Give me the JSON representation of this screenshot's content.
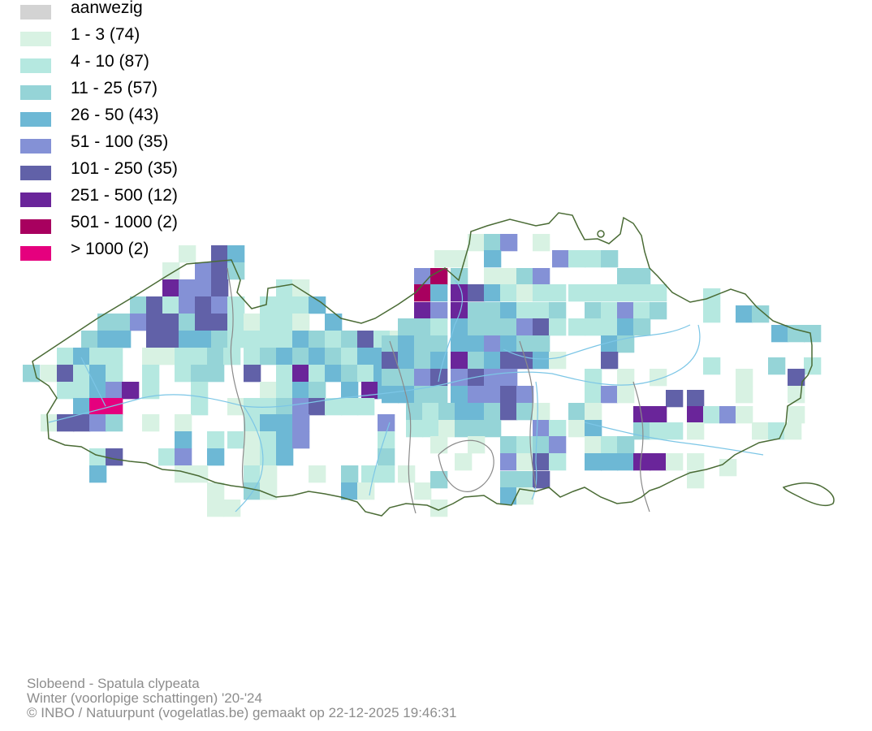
{
  "legend": {
    "items": [
      {
        "label": "aanwezig",
        "color": "#d3d3d3"
      },
      {
        "label": "1 - 3 (74)",
        "color": "#d8f2e3"
      },
      {
        "label": "4 - 10 (87)",
        "color": "#b5e8e0"
      },
      {
        "label": "11 - 25 (57)",
        "color": "#95d4d7"
      },
      {
        "label": "26 - 50 (43)",
        "color": "#6db8d5"
      },
      {
        "label": "51 - 100 (35)",
        "color": "#8491d6"
      },
      {
        "label": "101 - 250 (35)",
        "color": "#6161a8"
      },
      {
        "label": "251 - 500 (12)",
        "color": "#6a259a"
      },
      {
        "label": "501 - 1000 (2)",
        "color": "#a8005f"
      },
      {
        "label": "> 1000 (2)",
        "color": "#e5007e"
      }
    ]
  },
  "map": {
    "border_color": "#4a6b35",
    "province_border_color": "#8a8a8a",
    "river_color": "#7cc6e6"
  },
  "credits": {
    "species": "Slobeend - Spatula clypeata",
    "period": "Winter (voorlopige schattingen) '20-'24",
    "copyright": "© INBO / Natuurpunt (vogelatlas.be) gemaakt op 22-12-2025 19:46:31"
  }
}
